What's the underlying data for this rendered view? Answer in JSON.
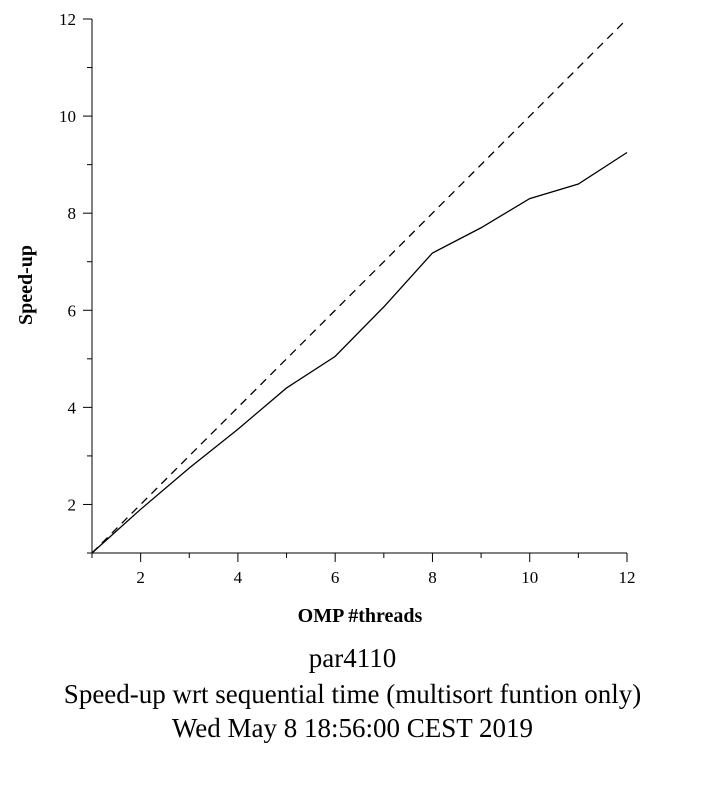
{
  "chart_data": {
    "type": "line",
    "xlabel": "OMP #threads",
    "ylabel": "Speed-up",
    "xlim": [
      1,
      12
    ],
    "ylim": [
      1,
      12
    ],
    "x_ticks": [
      2,
      4,
      6,
      8,
      10,
      12
    ],
    "y_ticks": [
      2,
      4,
      6,
      8,
      10,
      12
    ],
    "grid": false,
    "series": [
      {
        "style": "solid",
        "color": "#000000",
        "x": [
          1,
          2,
          3,
          4,
          5,
          6,
          7,
          8,
          9,
          10,
          11,
          12
        ],
        "y": [
          1.0,
          1.9,
          2.75,
          3.55,
          4.4,
          5.05,
          6.07,
          7.18,
          7.7,
          8.3,
          8.6,
          9.25
        ]
      },
      {
        "style": "dashed",
        "color": "#000000",
        "x": [
          1,
          12
        ],
        "y": [
          1,
          12
        ]
      }
    ]
  },
  "caption": {
    "line1": "par4110",
    "line2": "Speed-up wrt sequential time (multisort funtion only)",
    "line3": "Wed May  8 18:56:00 CEST 2019"
  }
}
